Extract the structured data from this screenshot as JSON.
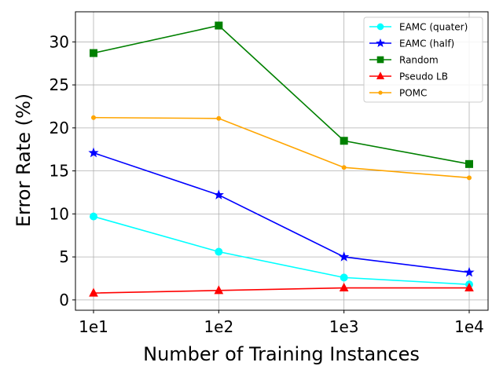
{
  "chart_data": {
    "type": "line",
    "title": "",
    "xlabel": "Number of Training Instances",
    "ylabel": "Error Rate (%)",
    "categories": [
      "1e1",
      "1e2",
      "1e3",
      "1e4"
    ],
    "x": [
      10,
      100,
      1000,
      10000
    ],
    "x_scale": "log",
    "yticks": [
      "0",
      "5",
      "10",
      "15",
      "20",
      "25",
      "30"
    ],
    "ylim": [
      -1.2,
      33.5
    ],
    "grid": true,
    "legend_position": "top-right",
    "series": [
      {
        "name": "EAMC (quater)",
        "color": "#00ffff",
        "marker": "circle",
        "values": [
          9.7,
          5.6,
          2.6,
          1.8
        ]
      },
      {
        "name": "EAMC (half)",
        "color": "#0000ff",
        "marker": "star",
        "values": [
          17.1,
          12.2,
          5.0,
          3.2
        ]
      },
      {
        "name": "Random",
        "color": "#008000",
        "marker": "square",
        "values": [
          28.7,
          31.9,
          18.5,
          15.8
        ]
      },
      {
        "name": "Pseudo LB",
        "color": "#ff0000",
        "marker": "triangle",
        "values": [
          0.8,
          1.1,
          1.4,
          1.4
        ]
      },
      {
        "name": "POMC",
        "color": "#ffa500",
        "marker": "small-circle",
        "values": [
          21.2,
          21.1,
          15.4,
          14.2
        ]
      }
    ]
  }
}
